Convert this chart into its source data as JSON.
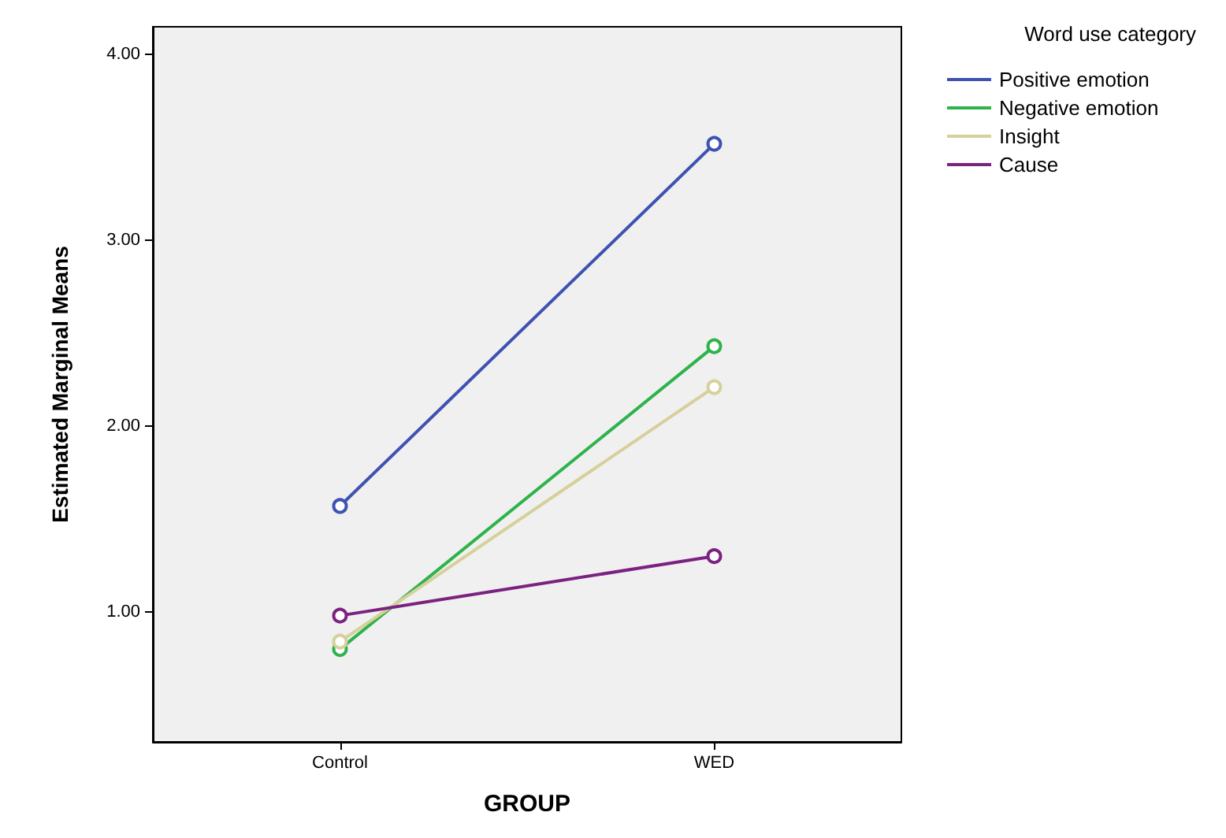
{
  "chart_data": {
    "type": "line",
    "xlabel": "GROUP",
    "ylabel": "Estimated Marginal Means",
    "legend_title": "Word use category",
    "categories": [
      "Control",
      "WED"
    ],
    "series": [
      {
        "name": "Positive emotion",
        "color": "#3f51b1",
        "values": [
          1.57,
          3.52
        ]
      },
      {
        "name": "Negative emotion",
        "color": "#2db34a",
        "values": [
          0.8,
          2.43
        ]
      },
      {
        "name": "Insight",
        "color": "#d6d09a",
        "values": [
          0.84,
          2.21
        ]
      },
      {
        "name": "Cause",
        "color": "#7b2281",
        "values": [
          0.98,
          1.3
        ]
      }
    ],
    "ylim": [
      0.3,
      4.15
    ],
    "yticks": [
      {
        "value": 1,
        "label": "1.00"
      },
      {
        "value": 2,
        "label": "2.00"
      },
      {
        "value": 3,
        "label": "3.00"
      },
      {
        "value": 4,
        "label": "4.00"
      }
    ],
    "grid": false,
    "legend": "right",
    "marker": "circle",
    "line_style": "solid"
  }
}
